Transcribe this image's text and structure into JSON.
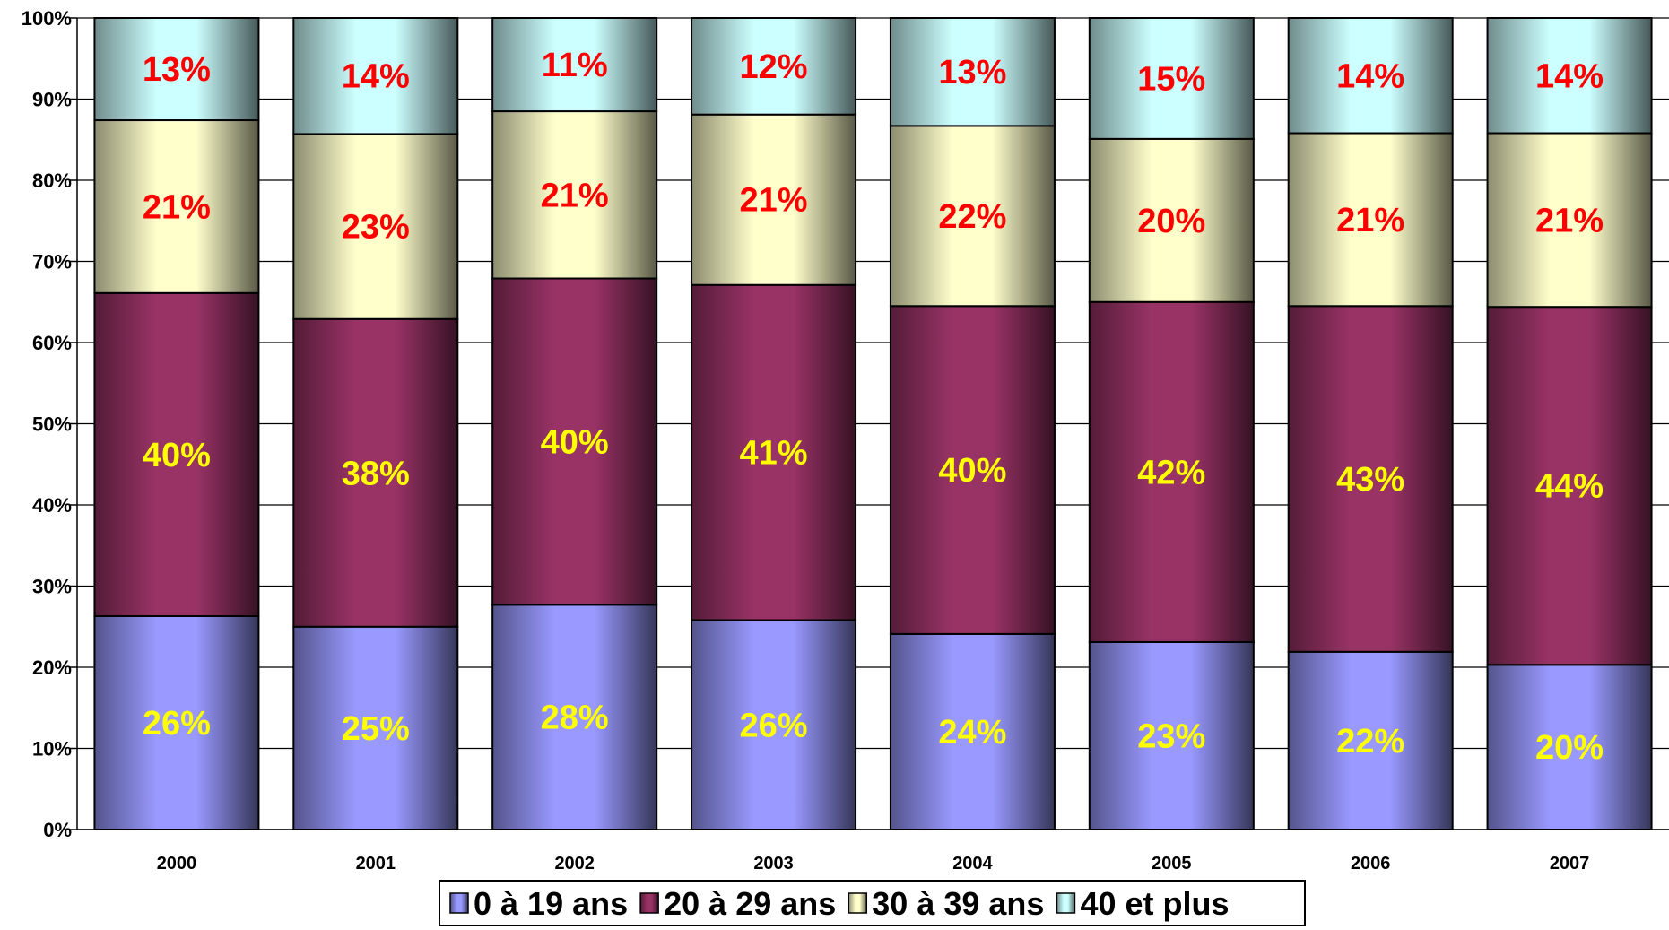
{
  "chart_data": {
    "type": "bar",
    "stacked": "percent",
    "title": "",
    "xlabel": "",
    "ylabel": "",
    "ylim": [
      0,
      100
    ],
    "y_ticks": [
      "0%",
      "10%",
      "20%",
      "30%",
      "40%",
      "50%",
      "60%",
      "70%",
      "80%",
      "90%",
      "100%"
    ],
    "grid": true,
    "legend_position": "bottom",
    "categories": [
      "2000",
      "2001",
      "2002",
      "2003",
      "2004",
      "2005",
      "2006",
      "2007"
    ],
    "series": [
      {
        "name": "0 à 19 ans",
        "values": [
          26.3,
          25.0,
          27.7,
          25.8,
          24.1,
          23.1,
          21.9,
          20.3
        ],
        "labels": [
          "26%",
          "25%",
          "28%",
          "26%",
          "24%",
          "23%",
          "22%",
          "20%"
        ],
        "color": "#9999ff",
        "label_color": "#ffff00"
      },
      {
        "name": "20 à 29 ans",
        "values": [
          39.8,
          37.9,
          40.2,
          41.3,
          40.4,
          41.9,
          42.6,
          44.1
        ],
        "labels": [
          "40%",
          "38%",
          "40%",
          "41%",
          "40%",
          "42%",
          "43%",
          "44%"
        ],
        "color": "#993366",
        "label_color": "#ffff00"
      },
      {
        "name": "30 à 39 ans",
        "values": [
          21.3,
          22.8,
          20.6,
          21.0,
          22.2,
          20.1,
          21.3,
          21.4
        ],
        "labels": [
          "21%",
          "23%",
          "21%",
          "21%",
          "22%",
          "20%",
          "21%",
          "21%"
        ],
        "color": "#ffffcc",
        "label_color": "#ff0000"
      },
      {
        "name": "40 et plus",
        "values": [
          12.6,
          14.3,
          11.5,
          11.9,
          13.3,
          14.9,
          14.2,
          14.2
        ],
        "labels": [
          "13%",
          "14%",
          "11%",
          "12%",
          "13%",
          "15%",
          "14%",
          "14%"
        ],
        "color": "#ccffff",
        "label_color": "#ff0000"
      }
    ]
  }
}
